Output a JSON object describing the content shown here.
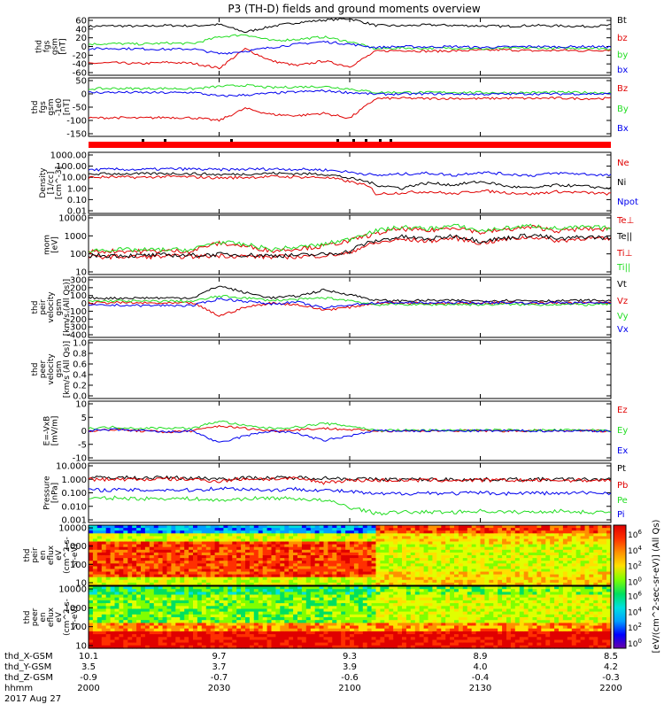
{
  "title": "P3 (TH-D) fields and ground moments overview",
  "colors": {
    "black": "#000000",
    "red": "#e00000",
    "green": "#22dd22",
    "blue": "#0000ee",
    "flag": "#ff0000"
  },
  "footer": {
    "date": "2017 Aug 27",
    "rows": [
      {
        "label": "thd_X-GSM",
        "values": [
          "10.1",
          "9.7",
          "9.3",
          "8.9",
          "8.5"
        ]
      },
      {
        "label": "thd_Y-GSM",
        "values": [
          "3.5",
          "3.7",
          "3.9",
          "4.0",
          "4.2"
        ]
      },
      {
        "label": "thd_Z-GSM",
        "values": [
          "-0.9",
          "-0.7",
          "-0.6",
          "-0.4",
          "-0.3"
        ]
      },
      {
        "label": "hhmm",
        "values": [
          "2000",
          "2030",
          "2100",
          "2130",
          "2200"
        ]
      }
    ]
  },
  "colorbar": {
    "label": "[eV/(cm^2-sec-sr-eV)] (All Qs)",
    "top_ticks": [
      "10^6",
      "10^4",
      "10^2",
      "10^0"
    ],
    "bottom_ticks": [
      "10^6",
      "10^4",
      "10^2",
      "10^0"
    ]
  },
  "chart_data": [
    {
      "type": "line",
      "panel": "fgs-gsm",
      "ylabel": [
        "thd",
        "fgs",
        "gsm",
        "[nT]"
      ],
      "yticks": [
        "60",
        "40",
        "20",
        "0",
        "-20",
        "-40",
        "-60"
      ],
      "ylim": [
        -60,
        60
      ],
      "x_time_range": [
        "2000",
        "2200"
      ],
      "series": [
        {
          "name": "Bt",
          "color": "#000000",
          "values": [
            42,
            43,
            42,
            44,
            43,
            46,
            30,
            42,
            50,
            55,
            58,
            44,
            43,
            45,
            44,
            43,
            42,
            44,
            43,
            42,
            44
          ]
        },
        {
          "name": "bz",
          "color": "#e00000",
          "values": [
            -35,
            -34,
            -36,
            -33,
            -35,
            -45,
            -5,
            -30,
            -40,
            -30,
            -42,
            -10,
            -8,
            -10,
            -9,
            -8,
            -7,
            -9,
            -8,
            -9,
            -7
          ]
        },
        {
          "name": "by",
          "color": "#22dd22",
          "values": [
            5,
            6,
            5,
            7,
            6,
            20,
            25,
            12,
            15,
            20,
            10,
            -5,
            -3,
            -4,
            -3,
            -5,
            -4,
            -3,
            -4,
            -3,
            -5
          ]
        },
        {
          "name": "bx",
          "color": "#0000ee",
          "values": [
            -5,
            -4,
            -5,
            -6,
            -5,
            -15,
            -10,
            -2,
            5,
            10,
            5,
            -2,
            0,
            -1,
            0,
            -2,
            -1,
            0,
            -1,
            0,
            -1
          ]
        }
      ]
    },
    {
      "type": "line",
      "panel": "fgs-gsm-ground",
      "ylabel": [
        "thd",
        "fgs",
        "gsm",
        "-1e0",
        "[nT]"
      ],
      "yticks": [
        "50",
        "0",
        "-50",
        "-100",
        "-150"
      ],
      "ylim": [
        -175,
        65
      ],
      "series": [
        {
          "name": "Bz",
          "color": "#e00000",
          "values": [
            -100,
            -98,
            -100,
            -97,
            -99,
            -110,
            -60,
            -85,
            -90,
            -80,
            -100,
            -20,
            -18,
            -20,
            -19,
            -20,
            -18,
            -19,
            -18,
            -20,
            -19
          ]
        },
        {
          "name": "By",
          "color": "#22dd22",
          "values": [
            20,
            22,
            21,
            22,
            20,
            30,
            35,
            25,
            28,
            30,
            20,
            5,
            6,
            5,
            6,
            5,
            4,
            5,
            6,
            5,
            4
          ]
        },
        {
          "name": "Bx",
          "color": "#0000ee",
          "values": [
            5,
            6,
            5,
            4,
            6,
            -10,
            -5,
            2,
            8,
            12,
            5,
            -2,
            -1,
            0,
            -1,
            -2,
            -1,
            0,
            -1,
            0,
            -1
          ]
        }
      ]
    },
    {
      "type": "line",
      "panel": "density",
      "ylabel": [
        "Density",
        "[1/cc]",
        "[cm^-3]"
      ],
      "yticks": [
        "1000.00",
        "100.00",
        "10.00",
        "1.00",
        "0.10",
        "0.01"
      ],
      "yscale": "log",
      "ylim": [
        0.005,
        2000
      ],
      "series": [
        {
          "name": "Ne",
          "color": "#e00000",
          "values": [
            10,
            11,
            10,
            12,
            11,
            9,
            10,
            12,
            11,
            10,
            4,
            0.3,
            0.4,
            0.5,
            0.3,
            0.6,
            0.4,
            0.3,
            0.5,
            0.4,
            0.3
          ]
        },
        {
          "name": "Ni",
          "color": "#000000",
          "values": [
            20,
            22,
            21,
            23,
            22,
            18,
            20,
            24,
            22,
            20,
            8,
            2,
            1,
            3,
            2,
            4,
            1.5,
            1,
            2,
            1.5,
            1
          ]
        },
        {
          "name": "Npot",
          "color": "#0000ee",
          "values": [
            50,
            55,
            52,
            60,
            58,
            50,
            55,
            60,
            55,
            50,
            30,
            15,
            20,
            25,
            15,
            30,
            20,
            15,
            25,
            20,
            15
          ]
        }
      ]
    },
    {
      "type": "line",
      "panel": "mom-temperature",
      "ylabel": [
        "mom",
        "[eV]"
      ],
      "yticks": [
        "10000",
        "1000",
        "100",
        "10"
      ],
      "yscale": "log",
      "ylim": [
        5,
        12000
      ],
      "series": [
        {
          "name": "Te⊥",
          "color": "#e00000",
          "values": [
            50,
            52,
            50,
            55,
            52,
            60,
            55,
            50,
            52,
            60,
            80,
            300,
            500,
            400,
            600,
            300,
            500,
            700,
            400,
            600,
            500
          ]
        },
        {
          "name": "Te||",
          "color": "#000000",
          "values": [
            60,
            62,
            60,
            65,
            62,
            70,
            65,
            60,
            62,
            70,
            100,
            400,
            700,
            500,
            800,
            400,
            600,
            900,
            500,
            700,
            600
          ]
        },
        {
          "name": "Ti⊥",
          "color": "#e00000",
          "values": [
            100,
            110,
            105,
            110,
            108,
            300,
            200,
            110,
            150,
            200,
            400,
            1000,
            2000,
            1500,
            2500,
            1200,
            1800,
            2500,
            1500,
            2000,
            1800
          ]
        },
        {
          "name": "Ti||",
          "color": "#22dd22",
          "values": [
            120,
            130,
            125,
            130,
            128,
            350,
            250,
            130,
            180,
            250,
            500,
            1500,
            2500,
            2000,
            3000,
            1500,
            2200,
            3000,
            2000,
            2500,
            2200
          ]
        }
      ]
    },
    {
      "type": "line",
      "panel": "peir-velocity-gsm",
      "ylabel": [
        "thd",
        "peir",
        "velocity",
        "gsm",
        "[km/s (All Qs)]"
      ],
      "yticks": [
        "300",
        "200",
        "100",
        "0",
        "-100",
        "-200",
        "-300",
        "-400"
      ],
      "ylim": [
        -400,
        300
      ],
      "series": [
        {
          "name": "Vt",
          "color": "#000000",
          "values": [
            60,
            55,
            60,
            58,
            62,
            200,
            120,
            60,
            80,
            150,
            100,
            30,
            25,
            30,
            28,
            25,
            30,
            28,
            25,
            30,
            28
          ]
        },
        {
          "name": "Vz",
          "color": "#e00000",
          "values": [
            0,
            5,
            0,
            -5,
            0,
            -150,
            -50,
            0,
            -20,
            -80,
            -50,
            0,
            0,
            0,
            0,
            0,
            0,
            0,
            0,
            0,
            0
          ]
        },
        {
          "name": "Vy",
          "color": "#22dd22",
          "values": [
            20,
            25,
            20,
            22,
            20,
            80,
            60,
            30,
            40,
            60,
            30,
            -20,
            -15,
            -20,
            -15,
            -20,
            -15,
            -20,
            -15,
            -20,
            -15
          ]
        },
        {
          "name": "Vx",
          "color": "#0000ee",
          "values": [
            -30,
            -25,
            -30,
            -28,
            -30,
            50,
            20,
            -10,
            10,
            -60,
            -20,
            0,
            5,
            0,
            5,
            0,
            5,
            0,
            5,
            0,
            5
          ]
        }
      ]
    },
    {
      "type": "line",
      "panel": "peer-velocity-gsm",
      "ylabel": [
        "thd",
        "peer",
        "velocity",
        "gsm",
        "[km/s (All Qs)]"
      ],
      "yticks": [
        "1.0",
        "0.8",
        "0.6",
        "0.4",
        "0.2",
        "0.0"
      ],
      "ylim": [
        0,
        1
      ],
      "series": [
        {
          "name": "Vt",
          "color": "#000000",
          "values": []
        },
        {
          "name": "Vz",
          "color": "#e00000",
          "values": []
        },
        {
          "name": "Vy",
          "color": "#22dd22",
          "values": []
        },
        {
          "name": "Vx",
          "color": "#0000ee",
          "values": []
        }
      ]
    },
    {
      "type": "line",
      "panel": "efield",
      "ylabel": [
        "E=-VxB",
        "[mV/m]"
      ],
      "yticks": [
        "10",
        "5",
        "0",
        "-5",
        "-10"
      ],
      "ylim": [
        -12,
        12
      ],
      "series": [
        {
          "name": "Ez",
          "color": "#e00000",
          "values": [
            0,
            0.5,
            0,
            -0.5,
            0,
            2,
            1,
            0,
            0.5,
            1,
            0.5,
            0,
            0,
            0,
            0,
            0,
            0,
            0,
            0,
            0,
            0
          ]
        },
        {
          "name": "Ey",
          "color": "#22dd22",
          "values": [
            1,
            1.5,
            1,
            1.2,
            1,
            4,
            2,
            1,
            1.5,
            3,
            2,
            0.2,
            0.3,
            0.2,
            0.3,
            0.2,
            0.3,
            0.2,
            0.3,
            0.2,
            0.3
          ]
        },
        {
          "name": "Ex",
          "color": "#0000ee",
          "values": [
            0,
            0.5,
            0,
            -0.5,
            0,
            -5,
            -2,
            0,
            -1,
            -4,
            -2,
            0,
            0,
            0,
            0,
            0,
            0,
            0,
            0,
            0,
            0
          ]
        }
      ]
    },
    {
      "type": "line",
      "panel": "pressure",
      "ylabel": [
        "Pressure",
        "[nPa]"
      ],
      "yticks": [
        "10.000",
        "1.000",
        "0.100",
        "0.010",
        "0.001"
      ],
      "yscale": "log",
      "ylim": [
        0.001,
        10
      ],
      "series": [
        {
          "name": "Pt",
          "color": "#000000",
          "values": [
            1,
            1.1,
            1,
            1.05,
            1,
            0.9,
            1,
            1,
            1.05,
            1,
            0.9,
            0.8,
            0.8,
            0.8,
            0.8,
            0.8,
            0.8,
            0.8,
            0.8,
            0.8,
            0.8
          ]
        },
        {
          "name": "Pb",
          "color": "#e00000",
          "values": [
            0.8,
            0.82,
            0.8,
            0.85,
            0.8,
            0.6,
            0.9,
            0.85,
            0.9,
            0.5,
            0.7,
            0.7,
            0.7,
            0.7,
            0.7,
            0.7,
            0.7,
            0.7,
            0.7,
            0.7,
            0.7
          ]
        },
        {
          "name": "Pe",
          "color": "#22dd22",
          "values": [
            0.04,
            0.045,
            0.04,
            0.042,
            0.04,
            0.03,
            0.04,
            0.045,
            0.04,
            0.03,
            0.01,
            0.004,
            0.005,
            0.005,
            0.005,
            0.006,
            0.005,
            0.005,
            0.006,
            0.005,
            0.005
          ]
        },
        {
          "name": "Pi",
          "color": "#0000ee",
          "values": [
            0.15,
            0.16,
            0.15,
            0.16,
            0.15,
            0.2,
            0.18,
            0.15,
            0.18,
            0.15,
            0.12,
            0.08,
            0.09,
            0.1,
            0.09,
            0.1,
            0.09,
            0.1,
            0.09,
            0.1,
            0.1
          ]
        }
      ]
    },
    {
      "type": "heatmap",
      "panel": "peir-en-eflux",
      "ylabel": [
        "thd",
        "peir",
        "en",
        "eflux",
        "eV",
        "(cm^2-s-",
        "sr-eV)"
      ],
      "yticks": [
        "10000",
        "1000",
        "100",
        "10"
      ],
      "yscale": "log",
      "colorscale": "rainbow"
    },
    {
      "type": "heatmap",
      "panel": "peer-en-eflux",
      "ylabel": [
        "thd",
        "peer",
        "en",
        "eflux",
        "eV",
        "(cm^2-s-",
        "sr-eV)"
      ],
      "yticks": [
        "10000",
        "1000",
        "100",
        "10"
      ],
      "yscale": "log",
      "colorscale": "rainbow"
    }
  ]
}
